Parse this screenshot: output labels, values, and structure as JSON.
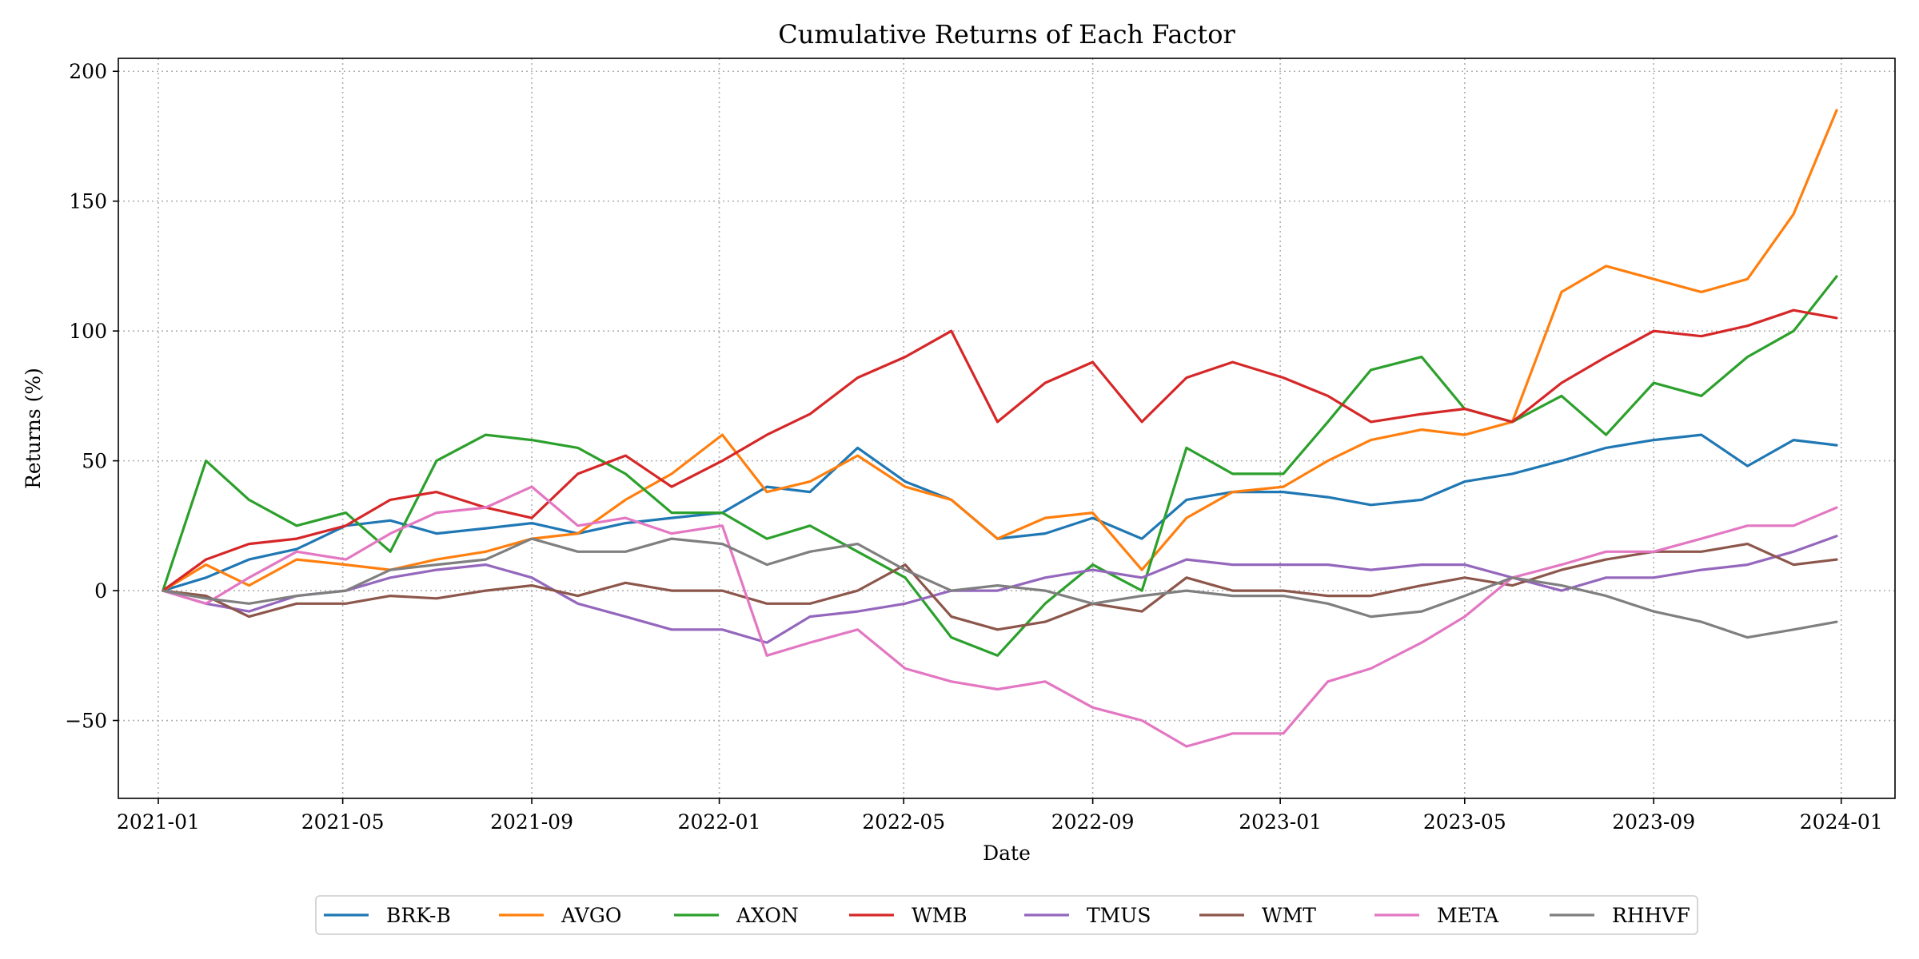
{
  "chart_data": {
    "type": "line",
    "title": "Cumulative Returns of Each Factor",
    "xlabel": "Date",
    "ylabel": "Returns (%)",
    "x_ticks": [
      "2021-01",
      "2021-05",
      "2021-09",
      "2022-01",
      "2022-05",
      "2022-09",
      "2023-01",
      "2023-05",
      "2023-09",
      "2024-01"
    ],
    "y_ticks": [
      -50,
      0,
      50,
      100,
      150,
      200
    ],
    "y_tick_labels": [
      "−50",
      "0",
      "50",
      "100",
      "150",
      "200"
    ],
    "xlim": [
      "2020-12-06",
      "2024-02-05"
    ],
    "ylim": [
      -80,
      205
    ],
    "grid": true,
    "legend_position": "bottom-center",
    "x": [
      "2021-01-04",
      "2021-02-01",
      "2021-03-01",
      "2021-04-01",
      "2021-05-03",
      "2021-06-01",
      "2021-07-01",
      "2021-08-02",
      "2021-09-01",
      "2021-10-01",
      "2021-11-01",
      "2021-12-01",
      "2022-01-03",
      "2022-02-01",
      "2022-03-01",
      "2022-04-01",
      "2022-05-02",
      "2022-06-01",
      "2022-07-01",
      "2022-08-01",
      "2022-09-01",
      "2022-10-03",
      "2022-11-01",
      "2022-12-01",
      "2023-01-03",
      "2023-02-01",
      "2023-03-01",
      "2023-04-03",
      "2023-05-01",
      "2023-06-01",
      "2023-07-03",
      "2023-08-01",
      "2023-09-01",
      "2023-10-02",
      "2023-11-01",
      "2023-12-01",
      "2023-12-29"
    ],
    "series": [
      {
        "name": "BRK-B",
        "color": "#1f77b4",
        "values": [
          0,
          5,
          12,
          16,
          25,
          27,
          22,
          24,
          26,
          22,
          26,
          28,
          30,
          40,
          38,
          55,
          42,
          35,
          20,
          22,
          28,
          20,
          35,
          38,
          38,
          36,
          33,
          35,
          42,
          45,
          50,
          55,
          58,
          60,
          48,
          58,
          56
        ]
      },
      {
        "name": "AVGO",
        "color": "#ff7f0e",
        "values": [
          0,
          10,
          2,
          12,
          10,
          8,
          12,
          15,
          20,
          22,
          35,
          45,
          60,
          38,
          42,
          52,
          40,
          35,
          20,
          28,
          30,
          8,
          28,
          38,
          40,
          50,
          58,
          62,
          60,
          65,
          115,
          125,
          120,
          115,
          120,
          145,
          185
        ]
      },
      {
        "name": "AXON",
        "color": "#2ca02c",
        "values": [
          0,
          50,
          35,
          25,
          30,
          15,
          50,
          60,
          58,
          55,
          45,
          30,
          30,
          20,
          25,
          15,
          5,
          -18,
          -25,
          -5,
          10,
          0,
          55,
          45,
          45,
          65,
          85,
          90,
          70,
          65,
          75,
          60,
          80,
          75,
          90,
          100,
          121
        ]
      },
      {
        "name": "WMB",
        "color": "#d62728",
        "values": [
          0,
          12,
          18,
          20,
          25,
          35,
          38,
          32,
          28,
          45,
          52,
          40,
          50,
          60,
          68,
          82,
          90,
          100,
          65,
          80,
          88,
          65,
          82,
          88,
          82,
          75,
          65,
          68,
          70,
          65,
          80,
          90,
          100,
          98,
          102,
          108,
          105
        ]
      },
      {
        "name": "TMUS",
        "color": "#9467bd",
        "values": [
          0,
          -5,
          -8,
          -2,
          0,
          5,
          8,
          10,
          5,
          -5,
          -10,
          -15,
          -15,
          -20,
          -10,
          -8,
          -5,
          0,
          0,
          5,
          8,
          5,
          12,
          10,
          10,
          10,
          8,
          10,
          10,
          5,
          0,
          5,
          5,
          8,
          10,
          15,
          21
        ]
      },
      {
        "name": "WMT",
        "color": "#8c564b",
        "values": [
          0,
          -2,
          -10,
          -5,
          -5,
          -2,
          -3,
          0,
          2,
          -2,
          3,
          0,
          0,
          -5,
          -5,
          0,
          10,
          -10,
          -15,
          -12,
          -5,
          -8,
          5,
          0,
          0,
          -2,
          -2,
          2,
          5,
          2,
          8,
          12,
          15,
          15,
          18,
          10,
          12
        ]
      },
      {
        "name": "META",
        "color": "#e377c2",
        "values": [
          0,
          -5,
          5,
          15,
          12,
          22,
          30,
          32,
          40,
          25,
          28,
          22,
          25,
          -25,
          -20,
          -15,
          -30,
          -35,
          -38,
          -35,
          -45,
          -50,
          -60,
          -55,
          -55,
          -35,
          -30,
          -20,
          -10,
          5,
          10,
          15,
          15,
          20,
          25,
          25,
          32
        ]
      },
      {
        "name": "RHHVF",
        "color": "#7f7f7f",
        "values": [
          0,
          -3,
          -5,
          -2,
          0,
          8,
          10,
          12,
          20,
          15,
          15,
          20,
          18,
          10,
          15,
          18,
          8,
          0,
          2,
          0,
          -5,
          -2,
          0,
          -2,
          -2,
          -5,
          -10,
          -8,
          -2,
          5,
          2,
          -2,
          -8,
          -12,
          -18,
          -15,
          -12
        ]
      }
    ]
  }
}
